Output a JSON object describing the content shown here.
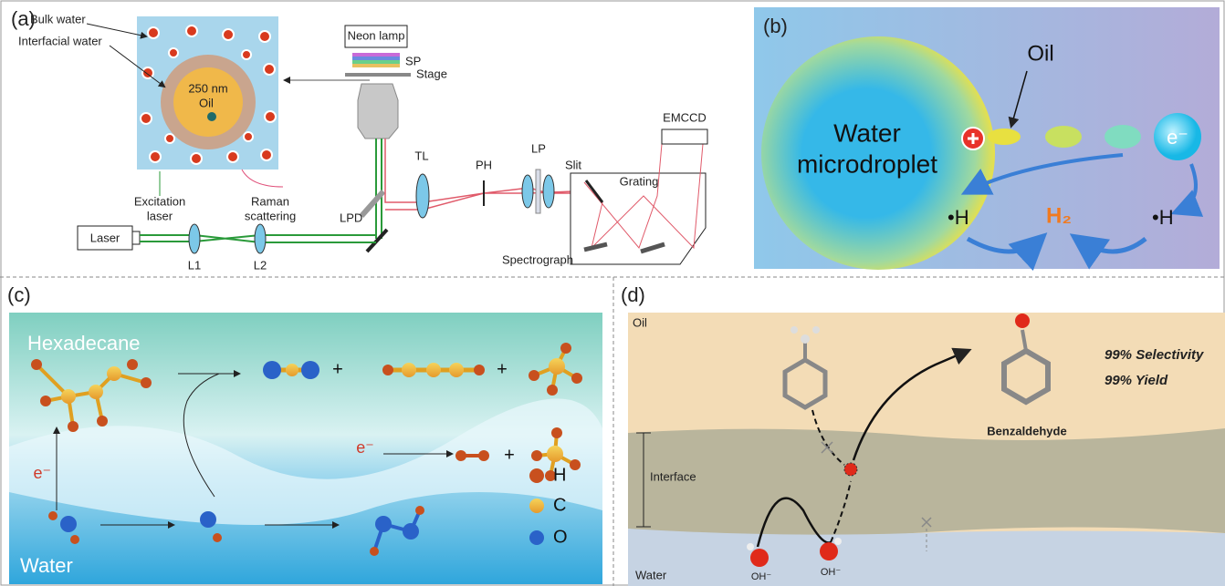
{
  "panel_a": {
    "label": "(a)",
    "bulk_water": "Bulk water",
    "interfacial_water": "Interfacial water",
    "size": "250 nm",
    "oil": "Oil",
    "excitation_laser": [
      "Excitation",
      "laser"
    ],
    "raman_scattering": [
      "Raman",
      "scattering"
    ],
    "neon_lamp": "Neon lamp",
    "sp": "SP",
    "stage": "Stage",
    "tl": "TL",
    "ph": "PH",
    "lp": "LP",
    "slit": "Slit",
    "emccd": "EMCCD",
    "grating": "Grating",
    "lpd": "LPD",
    "laser": "Laser",
    "l1": "L1",
    "l2": "L2",
    "spectrograph": "Spectrograph"
  },
  "panel_b": {
    "label": "(b)",
    "oil": "Oil",
    "droplet": [
      "Water",
      "microdroplet"
    ],
    "electron": "e⁻",
    "h_left": "•H",
    "h2": "H₂",
    "h_right": "•H"
  },
  "panel_c": {
    "label": "(c)",
    "hexadecane": "Hexadecane",
    "water": "Water",
    "electrons": [
      "e⁻",
      "e⁻"
    ],
    "plus": [
      "+",
      "+",
      "+"
    ],
    "legend": [
      "H",
      "C",
      "O"
    ]
  },
  "panel_d": {
    "label": "(d)",
    "oil": "Oil",
    "interface": "Interface",
    "water": "Water",
    "hydroxide": [
      "OH⁻",
      "OH⁻"
    ],
    "product": "Benzaldehyde",
    "selectivity": "99% Selectivity",
    "yield": "99% Yield"
  }
}
